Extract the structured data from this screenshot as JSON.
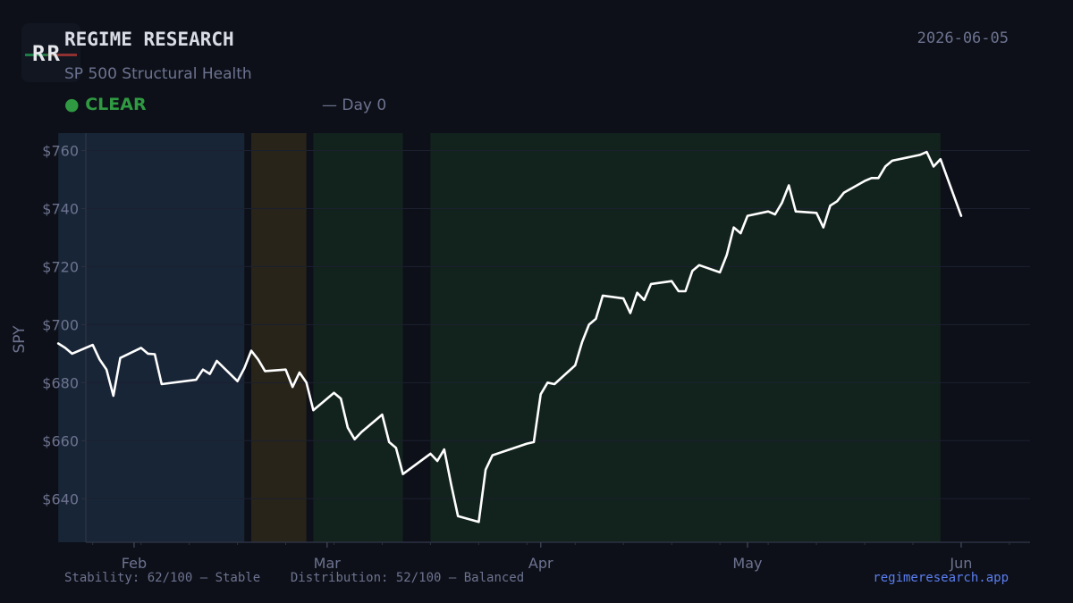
{
  "header": {
    "logo_text": "RR",
    "brand": "REGIME RESEARCH",
    "subtitle": "SP 500 Structural Health",
    "date": "2026-06-05",
    "status": "CLEAR",
    "status_dot": "●",
    "day_label": "— Day 0",
    "status_color": "#2f9a42"
  },
  "footer": {
    "stability": "Stability: 62/100 — Stable",
    "distribution": "Distribution: 52/100 — Balanced",
    "link": "regimeresearch.app"
  },
  "chart_data": {
    "type": "line",
    "ylabel": "SPY",
    "xlabel": "",
    "ylim": [
      625,
      766
    ],
    "xlim": [
      "2026-01-25",
      "2026-06-11"
    ],
    "y_ticks": [
      640,
      660,
      680,
      700,
      720,
      740,
      760
    ],
    "y_tick_labels": [
      "$640",
      "$660",
      "$680",
      "$700",
      "$720",
      "$740",
      "$760"
    ],
    "x_ticks": [
      "2026-02-01",
      "2026-03-01",
      "2026-04-01",
      "2026-05-01",
      "2026-06-01"
    ],
    "x_tick_labels": [
      "Feb",
      "Mar",
      "Apr",
      "May",
      "Jun"
    ],
    "grid": true,
    "line_color": "#ffffff",
    "regimes": [
      {
        "start": "2026-01-21",
        "end": "2026-02-17",
        "color": "#182536"
      },
      {
        "start": "2026-02-18",
        "end": "2026-02-26",
        "color": "#29241a"
      },
      {
        "start": "2026-02-27",
        "end": "2026-03-12",
        "color": "#12221c"
      },
      {
        "start": "2026-03-16",
        "end": "2026-05-29",
        "color": "#12221c"
      }
    ],
    "series": [
      {
        "values": [
          [
            "2026-01-21",
            693.5
          ],
          [
            "2026-01-22",
            692.0
          ],
          [
            "2026-01-23",
            690.0
          ],
          [
            "2026-01-26",
            693.0
          ],
          [
            "2026-01-27",
            688.0
          ],
          [
            "2026-01-28",
            684.5
          ],
          [
            "2026-01-29",
            675.5
          ],
          [
            "2026-01-30",
            688.5
          ],
          [
            "2026-02-02",
            692.0
          ],
          [
            "2026-02-03",
            690.0
          ],
          [
            "2026-02-04",
            689.8
          ],
          [
            "2026-02-05",
            679.5
          ],
          [
            "2026-02-10",
            681.0
          ],
          [
            "2026-02-11",
            684.5
          ],
          [
            "2026-02-12",
            683.0
          ],
          [
            "2026-02-13",
            687.5
          ],
          [
            "2026-02-16",
            680.5
          ],
          [
            "2026-02-17",
            685.0
          ],
          [
            "2026-02-18",
            691.0
          ],
          [
            "2026-02-19",
            688.0
          ],
          [
            "2026-02-20",
            684.0
          ],
          [
            "2026-02-23",
            684.5
          ],
          [
            "2026-02-24",
            678.5
          ],
          [
            "2026-02-25",
            683.5
          ],
          [
            "2026-02-26",
            680.0
          ],
          [
            "2026-02-27",
            670.5
          ],
          [
            "2026-03-02",
            676.5
          ],
          [
            "2026-03-03",
            674.5
          ],
          [
            "2026-03-04",
            664.5
          ],
          [
            "2026-03-05",
            660.5
          ],
          [
            "2026-03-06",
            663.0
          ],
          [
            "2026-03-09",
            669.0
          ],
          [
            "2026-03-10",
            659.5
          ],
          [
            "2026-03-11",
            657.5
          ],
          [
            "2026-03-12",
            648.5
          ],
          [
            "2026-03-16",
            655.5
          ],
          [
            "2026-03-17",
            653.0
          ],
          [
            "2026-03-18",
            657.0
          ],
          [
            "2026-03-19",
            645.0
          ],
          [
            "2026-03-20",
            634.0
          ],
          [
            "2026-03-23",
            632.0
          ],
          [
            "2026-03-24",
            650.0
          ],
          [
            "2026-03-25",
            655.0
          ],
          [
            "2026-03-30",
            659.0
          ],
          [
            "2026-03-31",
            659.5
          ],
          [
            "2026-04-01",
            676.0
          ],
          [
            "2026-04-02",
            680.0
          ],
          [
            "2026-04-03",
            679.5
          ],
          [
            "2026-04-06",
            686.0
          ],
          [
            "2026-04-07",
            694.0
          ],
          [
            "2026-04-08",
            700.0
          ],
          [
            "2026-04-09",
            702.0
          ],
          [
            "2026-04-10",
            710.0
          ],
          [
            "2026-04-13",
            709.0
          ],
          [
            "2026-04-14",
            704.0
          ],
          [
            "2026-04-15",
            711.0
          ],
          [
            "2026-04-16",
            708.5
          ],
          [
            "2026-04-17",
            714.0
          ],
          [
            "2026-04-20",
            715.0
          ],
          [
            "2026-04-21",
            711.5
          ],
          [
            "2026-04-22",
            711.5
          ],
          [
            "2026-04-23",
            718.5
          ],
          [
            "2026-04-24",
            720.5
          ],
          [
            "2026-04-27",
            718.0
          ],
          [
            "2026-04-28",
            724.0
          ],
          [
            "2026-04-29",
            733.5
          ],
          [
            "2026-04-30",
            731.5
          ],
          [
            "2026-05-01",
            737.5
          ],
          [
            "2026-05-04",
            739.0
          ],
          [
            "2026-05-05",
            738.0
          ],
          [
            "2026-05-06",
            742.0
          ],
          [
            "2026-05-07",
            748.0
          ],
          [
            "2026-05-08",
            739.0
          ],
          [
            "2026-05-11",
            738.5
          ],
          [
            "2026-05-12",
            733.5
          ],
          [
            "2026-05-13",
            741.0
          ],
          [
            "2026-05-14",
            742.5
          ],
          [
            "2026-05-15",
            745.5
          ],
          [
            "2026-05-18",
            749.5
          ],
          [
            "2026-05-19",
            750.5
          ],
          [
            "2026-05-20",
            750.5
          ],
          [
            "2026-05-21",
            754.5
          ],
          [
            "2026-05-22",
            756.5
          ],
          [
            "2026-05-26",
            758.5
          ],
          [
            "2026-05-27",
            759.5
          ],
          [
            "2026-05-28",
            754.5
          ],
          [
            "2026-05-29",
            757.0
          ],
          [
            "2026-06-01",
            737.5
          ]
        ]
      }
    ]
  }
}
